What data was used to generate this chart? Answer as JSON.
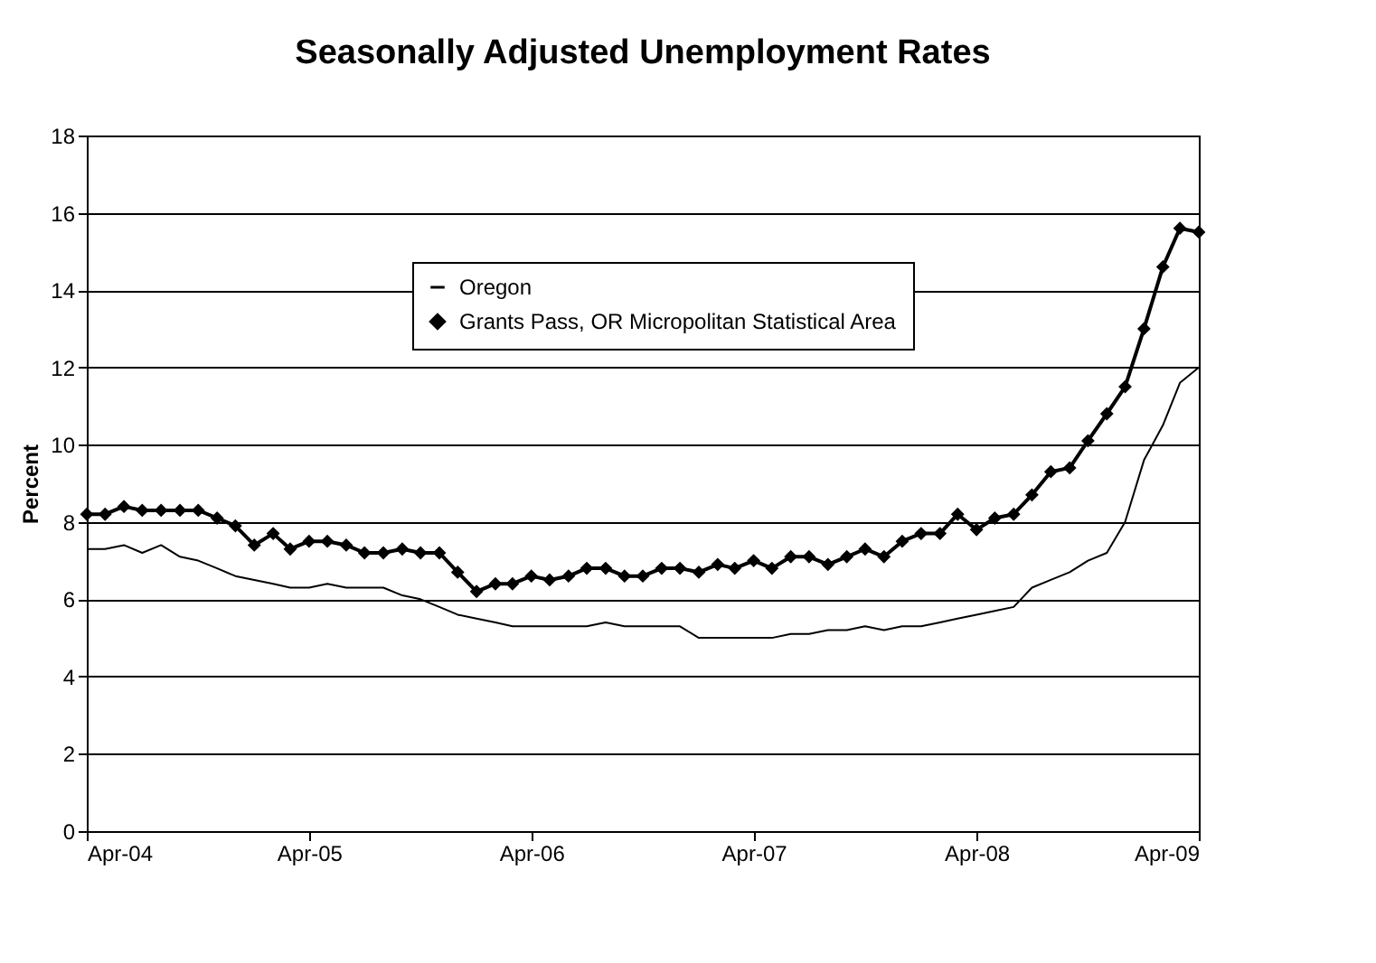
{
  "chart_data": {
    "type": "line",
    "title": "Seasonally Adjusted Unemployment Rates",
    "ylabel": "Percent",
    "x": [
      "2004-04",
      "2004-05",
      "2004-06",
      "2004-07",
      "2004-08",
      "2004-09",
      "2004-10",
      "2004-11",
      "2004-12",
      "2005-01",
      "2005-02",
      "2005-03",
      "2005-04",
      "2005-05",
      "2005-06",
      "2005-07",
      "2005-08",
      "2005-09",
      "2005-10",
      "2005-11",
      "2005-12",
      "2006-01",
      "2006-02",
      "2006-03",
      "2006-04",
      "2006-05",
      "2006-06",
      "2006-07",
      "2006-08",
      "2006-09",
      "2006-10",
      "2006-11",
      "2006-12",
      "2007-01",
      "2007-02",
      "2007-03",
      "2007-04",
      "2007-05",
      "2007-06",
      "2007-07",
      "2007-08",
      "2007-09",
      "2007-10",
      "2007-11",
      "2007-12",
      "2008-01",
      "2008-02",
      "2008-03",
      "2008-04",
      "2008-05",
      "2008-06",
      "2008-07",
      "2008-08",
      "2008-09",
      "2008-10",
      "2008-11",
      "2008-12",
      "2009-01",
      "2009-02",
      "2009-03",
      "2009-04"
    ],
    "series": [
      {
        "name": "Oregon",
        "color": "#000000",
        "marker": "none",
        "values": [
          7.3,
          7.3,
          7.4,
          7.2,
          7.4,
          7.1,
          7.0,
          6.8,
          6.6,
          6.5,
          6.4,
          6.3,
          6.3,
          6.4,
          6.3,
          6.3,
          6.3,
          6.1,
          6.0,
          5.8,
          5.6,
          5.5,
          5.4,
          5.3,
          5.3,
          5.3,
          5.3,
          5.3,
          5.4,
          5.3,
          5.3,
          5.3,
          5.3,
          5.0,
          5.0,
          5.0,
          5.0,
          5.0,
          5.1,
          5.1,
          5.2,
          5.2,
          5.3,
          5.2,
          5.3,
          5.3,
          5.4,
          5.5,
          5.6,
          5.7,
          5.8,
          6.3,
          6.5,
          6.7,
          7.0,
          7.2,
          8.0,
          9.6,
          10.5,
          11.6,
          12.0
        ]
      },
      {
        "name": "Grants Pass, OR Micropolitan Statistical Area",
        "color": "#000000",
        "marker": "diamond",
        "values": [
          8.2,
          8.2,
          8.4,
          8.3,
          8.3,
          8.3,
          8.3,
          8.1,
          7.9,
          7.4,
          7.7,
          7.3,
          7.5,
          7.5,
          7.4,
          7.2,
          7.2,
          7.3,
          7.2,
          7.2,
          6.7,
          6.2,
          6.4,
          6.4,
          6.6,
          6.5,
          6.6,
          6.8,
          6.8,
          6.6,
          6.6,
          6.8,
          6.8,
          6.7,
          6.9,
          6.8,
          7.0,
          6.8,
          7.1,
          7.1,
          6.9,
          7.1,
          7.3,
          7.1,
          7.5,
          7.7,
          7.7,
          8.2,
          7.8,
          8.1,
          8.2,
          8.7,
          9.3,
          9.4,
          10.1,
          10.8,
          11.5,
          13.0,
          14.6,
          15.6,
          15.5
        ]
      }
    ],
    "xlim": [
      "2004-04",
      "2009-04"
    ],
    "xticks": [
      {
        "value": "2004-04",
        "label": "Apr-04"
      },
      {
        "value": "2005-04",
        "label": "Apr-05"
      },
      {
        "value": "2006-04",
        "label": "Apr-06"
      },
      {
        "value": "2007-04",
        "label": "Apr-07"
      },
      {
        "value": "2008-04",
        "label": "Apr-08"
      },
      {
        "value": "2009-04",
        "label": "Apr-09"
      }
    ],
    "ylim": [
      0,
      18
    ],
    "yticks": [
      0,
      2,
      4,
      6,
      8,
      10,
      12,
      14,
      16,
      18
    ],
    "grid": "y",
    "legend": "top"
  }
}
